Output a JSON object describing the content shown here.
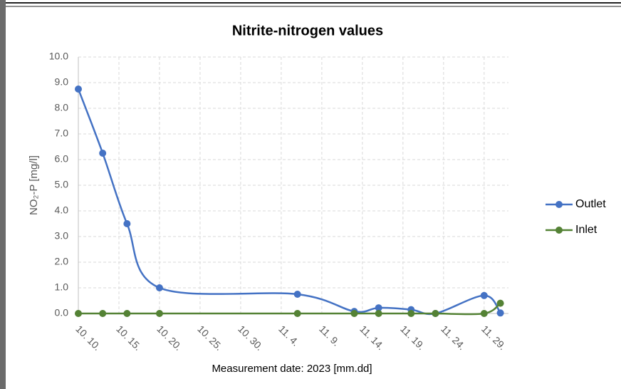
{
  "chart_data": {
    "type": "line",
    "title": "Nitrite-nitrogen values",
    "x_label": "Measurement date: 2023 [mm.dd]",
    "y_label": "NO₂-P [mg/l]",
    "x": [
      "10. 10.",
      "10. 13.",
      "10. 16.",
      "10. 20.",
      "11. 6.",
      "11. 13.",
      "11. 16.",
      "11. 20.",
      "11. 23.",
      "11. 29.",
      "12. 1."
    ],
    "series": [
      {
        "name": "Outlet",
        "color": "#4472c4",
        "values": [
          8.75,
          6.25,
          3.5,
          1.0,
          0.75,
          0.08,
          0.22,
          0.15,
          0.0,
          0.7,
          0.02
        ]
      },
      {
        "name": "Inlet",
        "color": "#548235",
        "values": [
          0,
          0,
          0,
          0,
          0,
          0,
          0,
          0,
          0,
          0,
          0.4
        ]
      }
    ],
    "xlim": [
      "10. 10.",
      "12. 2."
    ],
    "xticks": [
      "10. 10.",
      "10. 15.",
      "10. 20.",
      "10. 25.",
      "10. 30.",
      "11. 4.",
      "11. 9.",
      "11. 14.",
      "11. 19.",
      "11. 24.",
      "11. 29."
    ],
    "ylim": [
      0,
      10
    ],
    "yticks": [
      {
        "value": 0,
        "label": "0.0"
      },
      {
        "value": 1,
        "label": "1.0"
      },
      {
        "value": 2,
        "label": "2.0"
      },
      {
        "value": 3,
        "label": "3.0"
      },
      {
        "value": 4,
        "label": "4.0"
      },
      {
        "value": 5,
        "label": "5.0"
      },
      {
        "value": 6,
        "label": "6.0"
      },
      {
        "value": 7,
        "label": "7.0"
      },
      {
        "value": 8,
        "label": "8.0"
      },
      {
        "value": 9,
        "label": "9.0"
      },
      {
        "value": 10,
        "label": "10.0"
      }
    ],
    "grid": true,
    "legend": "right"
  }
}
